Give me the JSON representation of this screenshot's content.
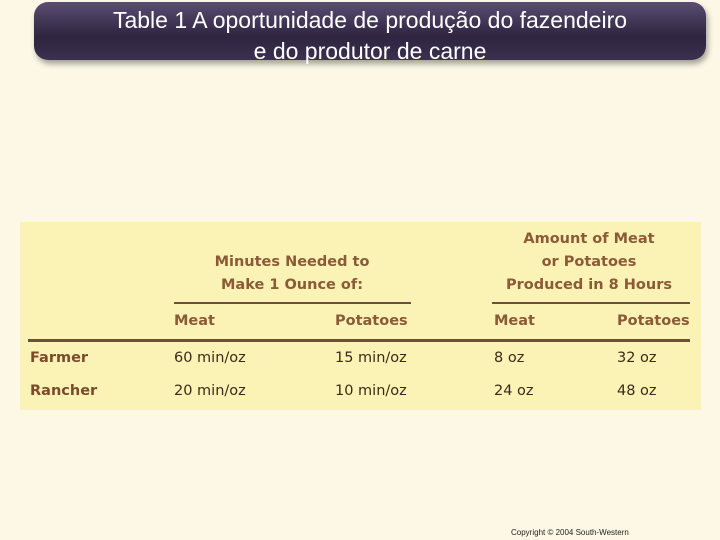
{
  "title": {
    "lines": [
      "Table 1 A oportunidade de produção do fazendeiro",
      "e do produtor de carne"
    ]
  },
  "table": {
    "group_headers": [
      {
        "lines": [
          "Minutes Needed to",
          "Make 1 Ounce of:"
        ]
      },
      {
        "lines": [
          "Amount of Meat",
          "or Potatoes",
          "Produced in 8 Hours"
        ]
      }
    ],
    "columns": [
      "Meat",
      "Potatoes",
      "Meat",
      "Potatoes"
    ],
    "rows": [
      [
        "Farmer",
        "60 min/oz",
        "15 min/oz",
        "8 oz",
        "32 oz"
      ],
      [
        "Rancher",
        "20 min/oz",
        "10 min/oz",
        "24 oz",
        "48 oz"
      ]
    ]
  },
  "footer": "Copyright © 2004 South-Western"
}
